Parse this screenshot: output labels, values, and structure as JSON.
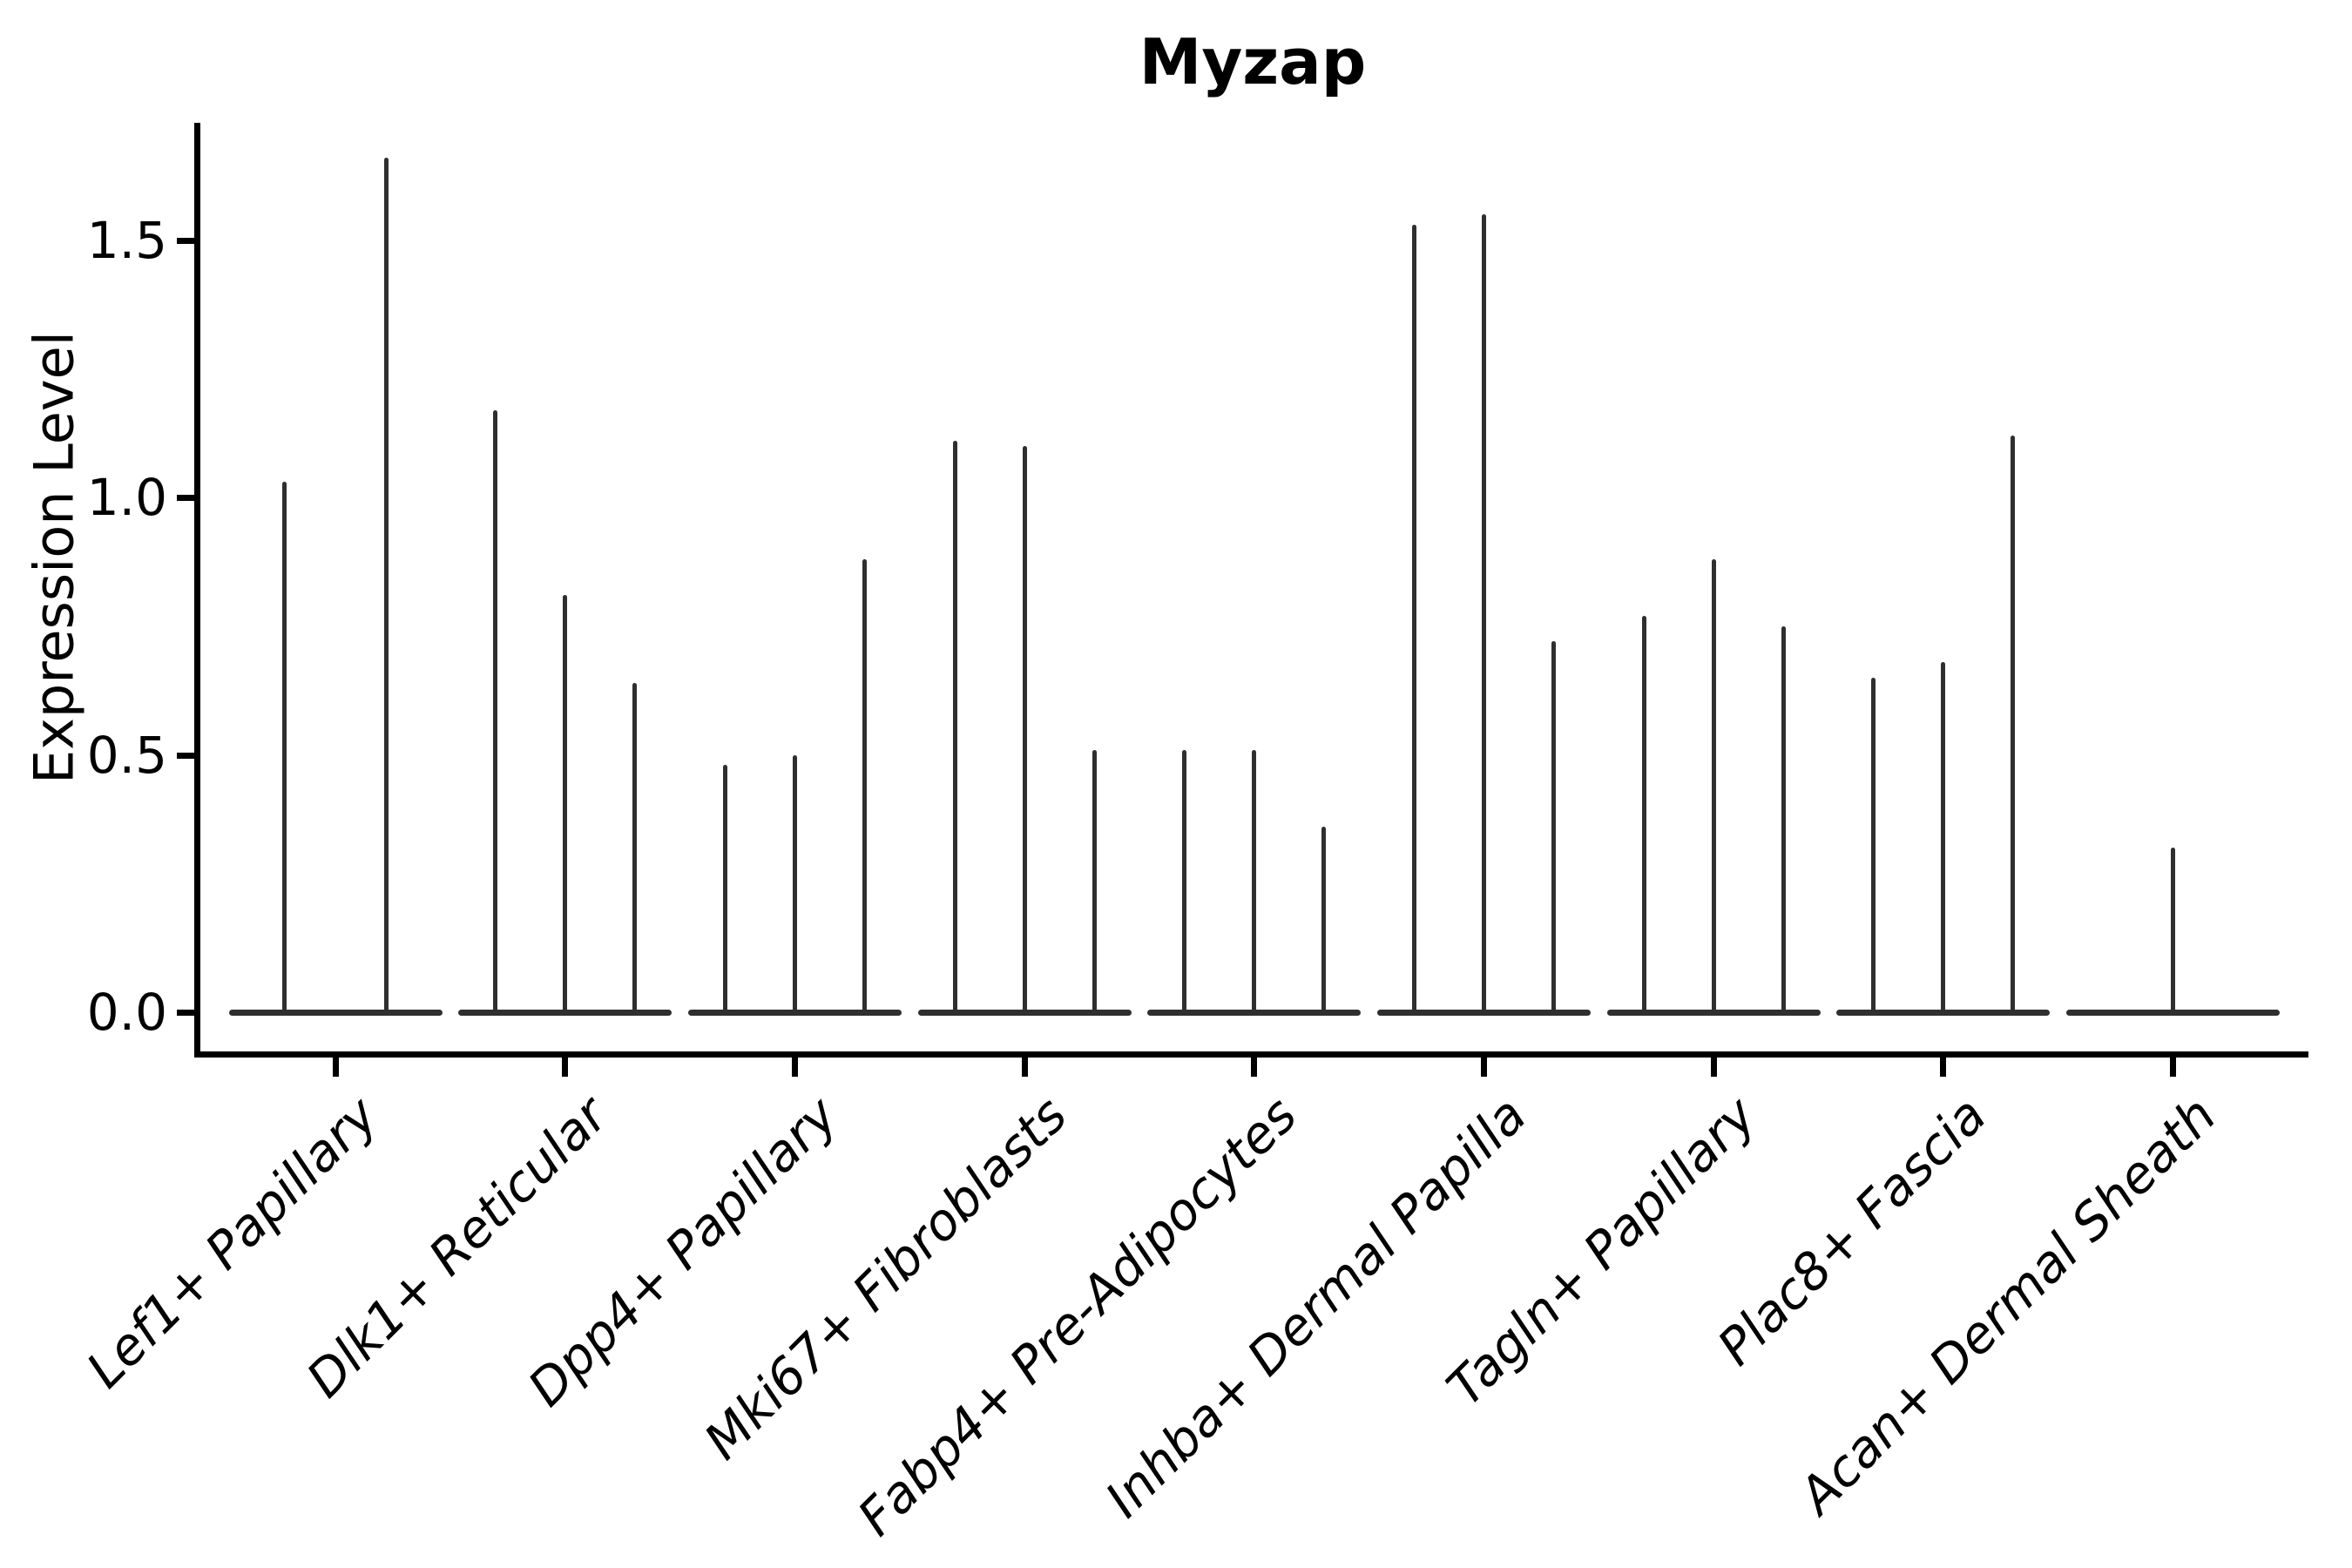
{
  "title": "Myzap",
  "axes": {
    "ylabel": "Expression Level"
  },
  "chart_data": {
    "type": "violin",
    "title": "Myzap",
    "xlabel": "",
    "ylabel": "Expression Level",
    "ylim": [
      -0.08,
      1.73
    ],
    "yticks": [
      0.0,
      0.5,
      1.0,
      1.5
    ],
    "ytick_labels": [
      "0.0",
      "0.5",
      "1.0",
      "1.5"
    ],
    "grid": false,
    "legend": false,
    "background": "#ffffff",
    "categories": [
      "Lef1+ Papillary",
      "Dlk1+ Reticular",
      "Dpp4+ Papillary",
      "Mki67+ Fibroblasts",
      "Fabp4+ Pre-Adipocytes",
      "Inhba+ Dermal Papilla",
      "Tagln+ Papillary",
      "Plac8+ Fascia",
      "Acan+ Dermal Sheath"
    ],
    "note": "Zero-inflated expression violins: each violin renders as a flat base at 0 with a hairline spike rising to its maximum expression value. Offsets are fractions of the group half-width.",
    "groups": [
      {
        "category": "Lef1+ Papillary",
        "violins": [
          {
            "offset": -0.48,
            "max": 1.03
          },
          {
            "offset": 0.48,
            "max": 1.66
          }
        ]
      },
      {
        "category": "Dlk1+ Reticular",
        "violins": [
          {
            "offset": -0.653,
            "max": 1.17
          },
          {
            "offset": 0,
            "max": 0.81
          },
          {
            "offset": 0.653,
            "max": 0.64
          }
        ]
      },
      {
        "category": "Dpp4+ Papillary",
        "violins": [
          {
            "offset": -0.653,
            "max": 0.48
          },
          {
            "offset": 0,
            "max": 0.5
          },
          {
            "offset": 0.653,
            "max": 0.88
          }
        ]
      },
      {
        "category": "Mki67+ Fibroblasts",
        "violins": [
          {
            "offset": -0.653,
            "max": 1.11
          },
          {
            "offset": 0,
            "max": 1.1
          },
          {
            "offset": 0.653,
            "max": 0.51
          }
        ]
      },
      {
        "category": "Fabp4+ Pre-Adipocytes",
        "violins": [
          {
            "offset": -0.653,
            "max": 0.51
          },
          {
            "offset": 0,
            "max": 0.51
          },
          {
            "offset": 0.653,
            "max": 0.36
          }
        ]
      },
      {
        "category": "Inhba+ Dermal Papilla",
        "violins": [
          {
            "offset": -0.653,
            "max": 1.53
          },
          {
            "offset": 0,
            "max": 1.55
          },
          {
            "offset": 0.653,
            "max": 0.72
          }
        ]
      },
      {
        "category": "Tagln+ Papillary",
        "violins": [
          {
            "offset": -0.653,
            "max": 0.77
          },
          {
            "offset": 0,
            "max": 0.88
          },
          {
            "offset": 0.653,
            "max": 0.75
          }
        ]
      },
      {
        "category": "Plac8+ Fascia",
        "violins": [
          {
            "offset": -0.653,
            "max": 0.65
          },
          {
            "offset": 0,
            "max": 0.68
          },
          {
            "offset": 0.653,
            "max": 1.12
          }
        ]
      },
      {
        "category": "Acan+ Dermal Sheath",
        "violins": [
          {
            "offset": 0,
            "max": 0.32
          }
        ]
      }
    ],
    "colors": {
      "line": "#2f2f2f",
      "spine": "#000000",
      "text": "#000000"
    }
  }
}
